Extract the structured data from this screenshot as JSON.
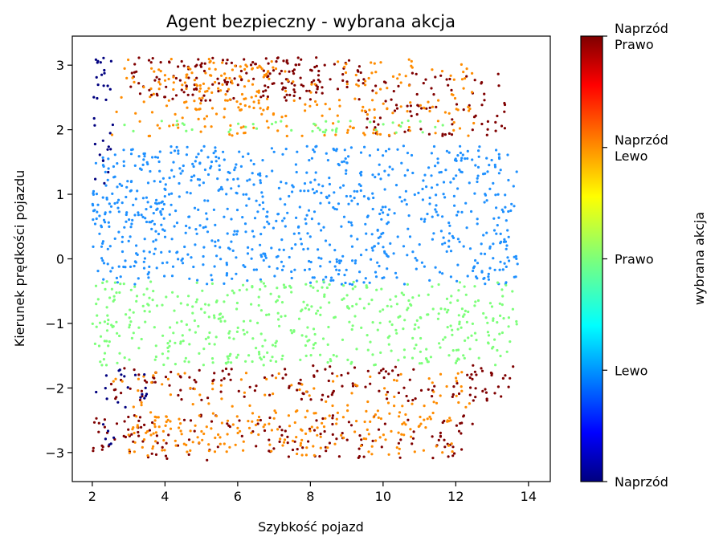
{
  "chart_data": {
    "type": "scatter",
    "title": "Agent bezpieczny - wybrana akcja",
    "xlabel": "Szybkość pojazd",
    "ylabel": "Kierunek prędkości pojazdu",
    "xlim": [
      1.45,
      14.6
    ],
    "ylim": [
      -3.45,
      3.45
    ],
    "x_ticks": [
      2,
      4,
      6,
      8,
      10,
      12,
      14
    ],
    "y_ticks": [
      -3,
      -2,
      -1,
      0,
      1,
      2,
      3
    ],
    "grid": false,
    "colormap": "jet",
    "colorbar": {
      "label": "wybrana akcja",
      "range": [
        0,
        4
      ],
      "ticks": [
        {
          "value": 0,
          "lines": [
            "Naprzód"
          ]
        },
        {
          "value": 1,
          "lines": [
            "Lewo"
          ]
        },
        {
          "value": 2,
          "lines": [
            "Prawo"
          ]
        },
        {
          "value": 3,
          "lines": [
            "Naprzód",
            "Lewo"
          ]
        },
        {
          "value": 4,
          "lines": [
            "Naprzód",
            "Prawo"
          ]
        }
      ]
    },
    "series": [
      {
        "action": 4,
        "color": "#7f0000",
        "regions": [
          {
            "x": [
              3.0,
              9.5
            ],
            "y": [
              2.45,
              3.12
            ],
            "density": 1.0
          },
          {
            "x": [
              9.5,
              13.5
            ],
            "y": [
              1.9,
              2.9
            ],
            "density": 0.5
          },
          {
            "x": [
              2.5,
              13.7
            ],
            "y": [
              -2.2,
              -1.65
            ],
            "density": 0.6
          },
          {
            "x": [
              2.0,
              3.5
            ],
            "y": [
              -3.0,
              -2.4
            ],
            "density": 0.7
          },
          {
            "x": [
              3.0,
              12.5
            ],
            "y": [
              -3.12,
              -2.4
            ],
            "density": 0.45
          }
        ]
      },
      {
        "action": 3.5,
        "color": "#ff8c00",
        "regions": [
          {
            "x": [
              4.5,
              7.0
            ],
            "y": [
              2.3,
              3.0
            ],
            "density": 1.0
          },
          {
            "x": [
              2.5,
              12.5
            ],
            "y": [
              1.9,
              3.1
            ],
            "density": 0.45
          },
          {
            "x": [
              3.0,
              12.0
            ],
            "y": [
              -3.05,
              -2.35
            ],
            "density": 0.8
          },
          {
            "x": [
              2.5,
              12.5
            ],
            "y": [
              -2.3,
              -1.75
            ],
            "density": 0.35
          }
        ]
      },
      {
        "action": 0,
        "color": "#00007f",
        "regions": [
          {
            "x": [
              2.0,
              2.6
            ],
            "y": [
              1.0,
              3.12
            ],
            "density": 0.6
          },
          {
            "x": [
              2.0,
              3.5
            ],
            "y": [
              -2.3,
              -1.7
            ],
            "density": 0.5
          },
          {
            "x": [
              2.0,
              2.6
            ],
            "y": [
              -3.05,
              -2.5
            ],
            "density": 0.4
          }
        ]
      },
      {
        "action": 1,
        "color": "#1e90ff",
        "regions": [
          {
            "x": [
              2.0,
              13.7
            ],
            "y": [
              -0.4,
              1.75
            ],
            "density": 0.8
          },
          {
            "x": [
              2.0,
              4.0
            ],
            "y": [
              0.5,
              1.0
            ],
            "density": 0.9
          }
        ]
      },
      {
        "action": 2,
        "color": "#7dff7a",
        "regions": [
          {
            "x": [
              2.0,
              13.7
            ],
            "y": [
              -1.65,
              -0.35
            ],
            "density": 0.75
          },
          {
            "x": [
              2.8,
              12.0
            ],
            "y": [
              1.95,
              2.15
            ],
            "density": 0.6
          }
        ]
      }
    ]
  }
}
